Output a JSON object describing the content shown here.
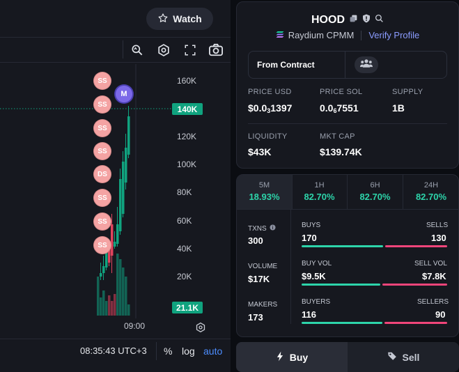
{
  "chart": {
    "watch_label": "Watch",
    "y_ticks": [
      "160K",
      "120K",
      "100K",
      "80K",
      "60K",
      "40K",
      "20K"
    ],
    "price_tag": "140K",
    "volume_tag": "21.1K",
    "x_tick": "09:00",
    "markers": [
      "SS",
      "SS",
      "SS",
      "SS",
      "DS",
      "SS",
      "SS",
      "SS"
    ],
    "migration_marker": "M",
    "time": "08:35:43 UTC+3",
    "percent_label": "%",
    "log_label": "log",
    "auto_label": "auto"
  },
  "token": {
    "symbol": "HOOD",
    "dex": "Raydium CPMM",
    "verify_label": "Verify Profile",
    "contract_label": "From Contract",
    "stats": [
      {
        "label": "PRICE USD",
        "value_main": "$0.0",
        "value_sub": "3",
        "value_rest": "1397"
      },
      {
        "label": "PRICE SOL",
        "value_main": "0.0",
        "value_sub": "6",
        "value_rest": "7551"
      },
      {
        "label": "SUPPLY",
        "value": "1B"
      },
      {
        "label": "LIQUIDITY",
        "value": "$43K"
      },
      {
        "label": "MKT CAP",
        "value": "$139.74K"
      }
    ]
  },
  "changes": [
    {
      "label": "5M",
      "value": "18.93%"
    },
    {
      "label": "1H",
      "value": "82.70%"
    },
    {
      "label": "6H",
      "value": "82.70%"
    },
    {
      "label": "24H",
      "value": "82.70%"
    }
  ],
  "txn_stats": {
    "txns_label": "TXNS",
    "txns_value": "300",
    "volume_label": "VOLUME",
    "volume_value": "$17K",
    "makers_label": "MAKERS",
    "makers_value": "173",
    "buys_label": "BUYS",
    "buys_value": "170",
    "sells_label": "SELLS",
    "sells_value": "130",
    "buyvol_label": "BUY VOL",
    "buyvol_value": "$9.5K",
    "sellvol_label": "SELL VOL",
    "sellvol_value": "$7.8K",
    "buyers_label": "BUYERS",
    "buyers_value": "116",
    "sellers_label": "SELLERS",
    "sellers_value": "90",
    "buys_share": 0.567,
    "buyvol_share": 0.549,
    "buyers_share": 0.563
  },
  "trade": {
    "buy_label": "Buy",
    "sell_label": "Sell"
  },
  "colors": {
    "up": "#2dd4aa",
    "down": "#f0457a",
    "accent": "#8b7cf6",
    "candle_up": "#10a37f",
    "candle_down": "#e0435d"
  }
}
